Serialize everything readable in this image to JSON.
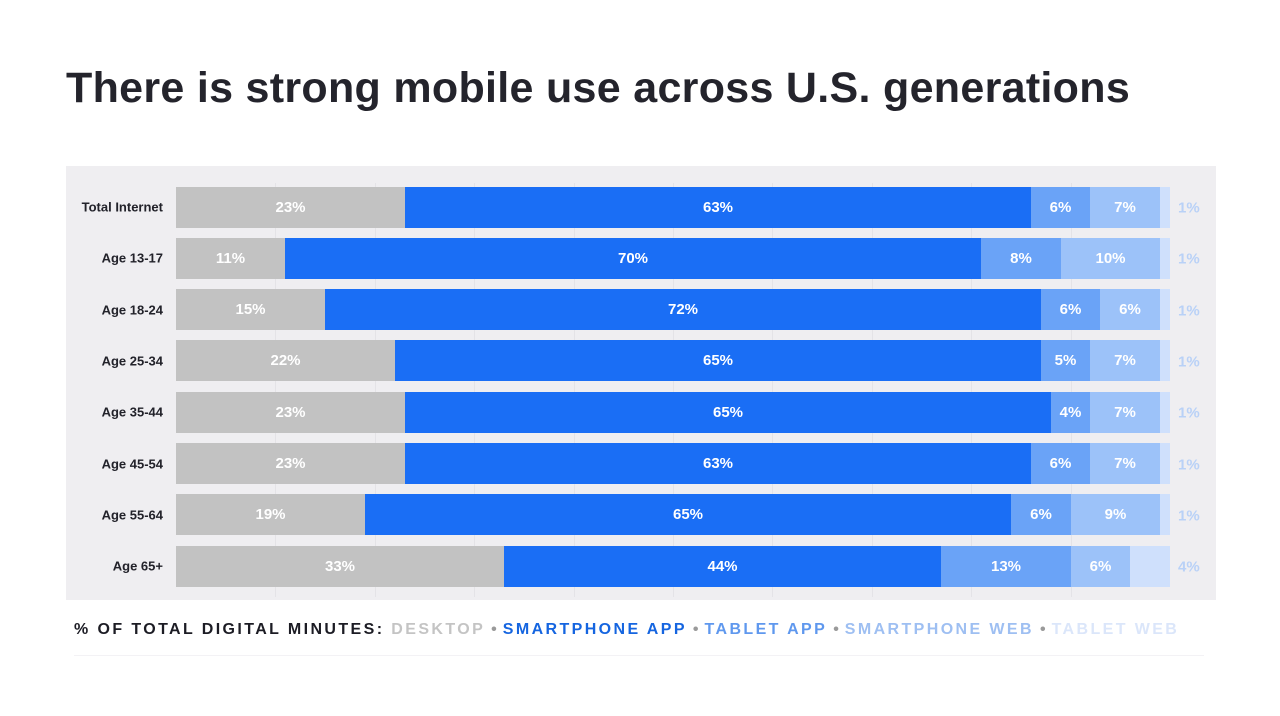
{
  "title": "There is strong mobile use across U.S. generations",
  "colors": {
    "desktop": "#c2c2c2",
    "smartphone_app": "#1a6ef5",
    "tablet_app": "#6aa3f7",
    "smartphone_web": "#9cc2f9",
    "tablet_web": "#cfe0fc",
    "outside_label": "#b9d1f7",
    "legend_prefix": "#1c1c24"
  },
  "legend": {
    "prefix": "% OF TOTAL DIGITAL MINUTES:",
    "separator": "•",
    "items": [
      {
        "label": "DESKTOP",
        "color": "#c4c4c4"
      },
      {
        "label": "SMARTPHONE APP",
        "color": "#1565e0"
      },
      {
        "label": "TABLET APP",
        "color": "#5f98ee"
      },
      {
        "label": "SMARTPHONE WEB",
        "color": "#9ebff2"
      },
      {
        "label": "TABLET WEB",
        "color": "#dbe6fa"
      }
    ]
  },
  "chart_data": {
    "type": "bar",
    "orientation": "horizontal",
    "stacked": true,
    "title": "There is strong mobile use across U.S. generations",
    "xlabel": "% of total digital minutes",
    "ylabel": "",
    "xlim": [
      0,
      100
    ],
    "grid": true,
    "legend_position": "bottom",
    "categories": [
      "Total Internet",
      "Age 13-17",
      "Age 18-24",
      "Age 25-34",
      "Age 35-44",
      "Age 45-54",
      "Age 55-64",
      "Age 65+"
    ],
    "series": [
      {
        "name": "Desktop",
        "values": [
          23,
          11,
          15,
          22,
          23,
          23,
          19,
          33
        ]
      },
      {
        "name": "Smartphone App",
        "values": [
          63,
          70,
          72,
          65,
          65,
          63,
          65,
          44
        ]
      },
      {
        "name": "Tablet App",
        "values": [
          6,
          8,
          6,
          5,
          4,
          6,
          6,
          13
        ]
      },
      {
        "name": "Smartphone Web",
        "values": [
          7,
          10,
          6,
          7,
          7,
          7,
          9,
          6
        ]
      },
      {
        "name": "Tablet Web",
        "values": [
          1,
          1,
          1,
          1,
          1,
          1,
          1,
          4
        ]
      }
    ],
    "value_labels": [
      [
        "23%",
        "63%",
        "6%",
        "7%",
        "1%"
      ],
      [
        "11%",
        "70%",
        "8%",
        "10%",
        "1%"
      ],
      [
        "15%",
        "72%",
        "6%",
        "6%",
        "1%"
      ],
      [
        "22%",
        "65%",
        "5%",
        "7%",
        "1%"
      ],
      [
        "23%",
        "65%",
        "4%",
        "7%",
        "1%"
      ],
      [
        "23%",
        "63%",
        "6%",
        "7%",
        "1%"
      ],
      [
        "19%",
        "65%",
        "6%",
        "9%",
        "1%"
      ],
      [
        "33%",
        "44%",
        "13%",
        "6%",
        "4%"
      ]
    ]
  }
}
